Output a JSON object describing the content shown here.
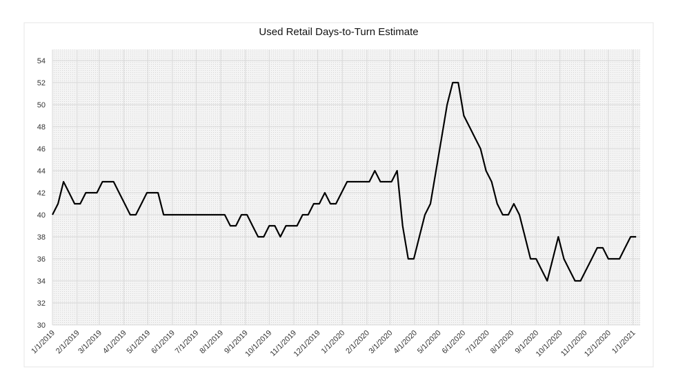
{
  "chart_data": {
    "type": "line",
    "title": "Used Retail Days-to-Turn Estimate",
    "x": [
      "2019-01-01",
      "2019-01-08",
      "2019-01-15",
      "2019-01-22",
      "2019-01-29",
      "2019-02-05",
      "2019-02-12",
      "2019-02-19",
      "2019-02-26",
      "2019-03-05",
      "2019-03-12",
      "2019-03-19",
      "2019-03-26",
      "2019-04-02",
      "2019-04-09",
      "2019-04-16",
      "2019-04-23",
      "2019-04-30",
      "2019-05-07",
      "2019-05-14",
      "2019-05-21",
      "2019-05-28",
      "2019-06-04",
      "2019-06-11",
      "2019-06-18",
      "2019-06-25",
      "2019-07-02",
      "2019-07-09",
      "2019-07-16",
      "2019-07-23",
      "2019-07-30",
      "2019-08-06",
      "2019-08-13",
      "2019-08-20",
      "2019-08-27",
      "2019-09-03",
      "2019-09-10",
      "2019-09-17",
      "2019-09-24",
      "2019-10-01",
      "2019-10-08",
      "2019-10-15",
      "2019-10-22",
      "2019-10-29",
      "2019-11-05",
      "2019-11-12",
      "2019-11-19",
      "2019-11-26",
      "2019-12-03",
      "2019-12-10",
      "2019-12-17",
      "2019-12-24",
      "2019-12-31",
      "2020-01-07",
      "2020-01-14",
      "2020-01-21",
      "2020-01-28",
      "2020-02-04",
      "2020-02-11",
      "2020-02-18",
      "2020-02-25",
      "2020-03-03",
      "2020-03-10",
      "2020-03-17",
      "2020-03-24",
      "2020-03-31",
      "2020-04-07",
      "2020-04-14",
      "2020-04-21",
      "2020-04-28",
      "2020-05-05",
      "2020-05-12",
      "2020-05-19",
      "2020-05-26",
      "2020-06-02",
      "2020-06-09",
      "2020-06-16",
      "2020-06-23",
      "2020-06-30",
      "2020-07-07",
      "2020-07-14",
      "2020-07-21",
      "2020-07-28",
      "2020-08-04",
      "2020-08-11",
      "2020-08-18",
      "2020-08-25",
      "2020-09-01",
      "2020-09-08",
      "2020-09-15",
      "2020-09-22",
      "2020-09-29",
      "2020-10-06",
      "2020-10-13",
      "2020-10-20",
      "2020-10-27",
      "2020-11-03",
      "2020-11-10",
      "2020-11-17",
      "2020-11-24",
      "2020-12-01",
      "2020-12-08",
      "2020-12-15",
      "2020-12-22",
      "2020-12-29",
      "2021-01-05"
    ],
    "series": [
      {
        "color": "#000000",
        "values": [
          40,
          41,
          43,
          42,
          41,
          41,
          42,
          42,
          42,
          43,
          43,
          43,
          42,
          41,
          40,
          40,
          41,
          42,
          42,
          42,
          40,
          40,
          40,
          40,
          40,
          40,
          40,
          40,
          40,
          40,
          40,
          40,
          39,
          39,
          40,
          40,
          39,
          38,
          38,
          39,
          39,
          38,
          39,
          39,
          39,
          40,
          40,
          41,
          41,
          42,
          41,
          41,
          42,
          43,
          43,
          43,
          43,
          43,
          44,
          43,
          43,
          43,
          44,
          39,
          36,
          36,
          38,
          40,
          41,
          44,
          47,
          50,
          52,
          52,
          49,
          48,
          47,
          46,
          44,
          43,
          41,
          40,
          40,
          41,
          40,
          38,
          36,
          36,
          35,
          34,
          36,
          38,
          36,
          35,
          34,
          34,
          35,
          36,
          37,
          37,
          36,
          36,
          36,
          37,
          38,
          38
        ]
      }
    ],
    "xlim": [
      "2019-01-01",
      "2021-01-10"
    ],
    "xticks": [
      {
        "value": "2019-01-01",
        "label": "1/1/2019"
      },
      {
        "value": "2019-02-01",
        "label": "2/1/2019"
      },
      {
        "value": "2019-03-01",
        "label": "3/1/2019"
      },
      {
        "value": "2019-04-01",
        "label": "4/1/2019"
      },
      {
        "value": "2019-05-01",
        "label": "5/1/2019"
      },
      {
        "value": "2019-06-01",
        "label": "6/1/2019"
      },
      {
        "value": "2019-07-01",
        "label": "7/1/2019"
      },
      {
        "value": "2019-08-01",
        "label": "8/1/2019"
      },
      {
        "value": "2019-09-01",
        "label": "9/1/2019"
      },
      {
        "value": "2019-10-01",
        "label": "10/1/2019"
      },
      {
        "value": "2019-11-01",
        "label": "11/1/2019"
      },
      {
        "value": "2019-12-01",
        "label": "12/1/2019"
      },
      {
        "value": "2020-01-01",
        "label": "1/1/2020"
      },
      {
        "value": "2020-02-01",
        "label": "2/1/2020"
      },
      {
        "value": "2020-03-01",
        "label": "3/1/2020"
      },
      {
        "value": "2020-04-01",
        "label": "4/1/2020"
      },
      {
        "value": "2020-05-01",
        "label": "5/1/2020"
      },
      {
        "value": "2020-06-01",
        "label": "6/1/2020"
      },
      {
        "value": "2020-07-01",
        "label": "7/1/2020"
      },
      {
        "value": "2020-08-01",
        "label": "8/1/2020"
      },
      {
        "value": "2020-09-01",
        "label": "9/1/2020"
      },
      {
        "value": "2020-10-01",
        "label": "10/1/2020"
      },
      {
        "value": "2020-11-01",
        "label": "11/1/2020"
      },
      {
        "value": "2020-12-01",
        "label": "12/1/2020"
      },
      {
        "value": "2021-01-01",
        "label": "1/1/2021"
      }
    ],
    "ylim": [
      30,
      55
    ],
    "yticks": [
      30,
      32,
      34,
      36,
      38,
      40,
      42,
      44,
      46,
      48,
      50,
      52,
      54
    ],
    "grid": true
  }
}
